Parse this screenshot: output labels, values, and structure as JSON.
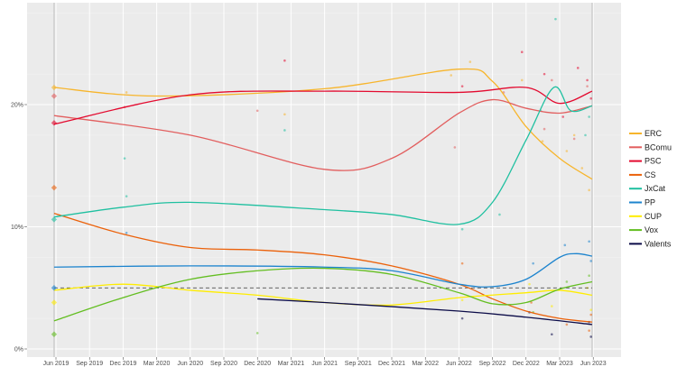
{
  "chart_data": {
    "type": "line",
    "title": "",
    "xlabel": "",
    "ylabel": "",
    "ylim": [
      0,
      0.285
    ],
    "xlim": [
      "2019-03-10",
      "2023-07-20"
    ],
    "y_ticks": [
      {
        "v": 0,
        "label": "0%"
      },
      {
        "v": 10,
        "label": "10%"
      },
      {
        "v": 20,
        "label": "20%"
      }
    ],
    "x_ticks": [
      {
        "d": "2019-06-01",
        "label": "Jun 2019"
      },
      {
        "d": "2019-09-01",
        "label": "Sep 2019"
      },
      {
        "d": "2019-12-01",
        "label": "Dec 2019"
      },
      {
        "d": "2020-03-01",
        "label": "Mar 2020"
      },
      {
        "d": "2020-06-01",
        "label": "Jun 2020"
      },
      {
        "d": "2020-09-01",
        "label": "Sep 2020"
      },
      {
        "d": "2020-12-01",
        "label": "Dec 2020"
      },
      {
        "d": "2021-03-01",
        "label": "Mar 2021"
      },
      {
        "d": "2021-06-01",
        "label": "Jun 2021"
      },
      {
        "d": "2021-09-01",
        "label": "Sep 2021"
      },
      {
        "d": "2021-12-01",
        "label": "Dec 2021"
      },
      {
        "d": "2022-03-01",
        "label": "Mar 2022"
      },
      {
        "d": "2022-06-01",
        "label": "Jun 2022"
      },
      {
        "d": "2022-09-01",
        "label": "Sep 2022"
      },
      {
        "d": "2022-12-01",
        "label": "Dec 2022"
      },
      {
        "d": "2023-03-01",
        "label": "Mar 2023"
      },
      {
        "d": "2023-06-01",
        "label": "Jun 2023"
      }
    ],
    "grid": true,
    "threshold_line": {
      "value": 5,
      "style": "dashed"
    },
    "event_lines": [
      "2019-05-26",
      "2023-05-28"
    ],
    "legend_position": "right",
    "series": [
      {
        "name": "ERC",
        "color": "#F7B52C",
        "election": 21.4,
        "trend": [
          [
            "2019-05-26",
            21.4
          ],
          [
            "2020-03-01",
            20.7
          ],
          [
            "2021-06-01",
            21.3
          ],
          [
            "2022-06-01",
            22.9
          ],
          [
            "2022-09-01",
            21.9
          ],
          [
            "2022-12-01",
            18.2
          ],
          [
            "2023-03-01",
            15.6
          ],
          [
            "2023-05-28",
            13.9
          ]
        ],
        "polls": [
          [
            "2019-12-10",
            21.0
          ],
          [
            "2021-02-14",
            19.2
          ],
          [
            "2022-05-10",
            22.4
          ],
          [
            "2022-07-01",
            23.5
          ],
          [
            "2022-11-20",
            22.0
          ],
          [
            "2023-01-15",
            17.0
          ],
          [
            "2023-03-20",
            16.2
          ],
          [
            "2023-05-01",
            14.8
          ],
          [
            "2023-05-20",
            13.0
          ],
          [
            "2023-04-10",
            17.5
          ]
        ]
      },
      {
        "name": "BComu",
        "color": "#E25E5E",
        "election": 20.7,
        "trend": [
          [
            "2019-05-26",
            19.1
          ],
          [
            "2020-06-01",
            17.5
          ],
          [
            "2021-06-01",
            14.7
          ],
          [
            "2021-12-01",
            15.6
          ],
          [
            "2022-06-01",
            19.3
          ],
          [
            "2022-09-01",
            20.4
          ],
          [
            "2022-12-01",
            19.7
          ],
          [
            "2023-03-01",
            19.3
          ],
          [
            "2023-05-28",
            19.9
          ]
        ],
        "polls": [
          [
            "2019-12-05",
            19.8
          ],
          [
            "2020-12-01",
            19.5
          ],
          [
            "2022-05-20",
            16.5
          ],
          [
            "2022-10-01",
            21.0
          ],
          [
            "2023-01-20",
            18.0
          ],
          [
            "2023-04-10",
            17.2
          ],
          [
            "2023-05-15",
            21.5
          ],
          [
            "2023-02-10",
            22.0
          ]
        ]
      },
      {
        "name": "PSC",
        "color": "#E30A2F",
        "election": 18.5,
        "trend": [
          [
            "2019-05-26",
            18.4
          ],
          [
            "2020-06-01",
            20.8
          ],
          [
            "2021-06-01",
            21.1
          ],
          [
            "2022-06-01",
            21.0
          ],
          [
            "2022-12-01",
            21.4
          ],
          [
            "2023-03-01",
            20.1
          ],
          [
            "2023-05-28",
            21.1
          ]
        ],
        "polls": [
          [
            "2021-02-14",
            23.6
          ],
          [
            "2022-06-10",
            21.5
          ],
          [
            "2022-11-20",
            24.3
          ],
          [
            "2023-01-20",
            22.5
          ],
          [
            "2023-04-20",
            23.0
          ],
          [
            "2023-05-15",
            22.0
          ],
          [
            "2023-05-25",
            20.5
          ],
          [
            "2023-03-10",
            19.0
          ]
        ]
      },
      {
        "name": "CS",
        "color": "#EB610A",
        "election": 13.2,
        "trend": [
          [
            "2019-05-26",
            11.1
          ],
          [
            "2019-12-01",
            9.4
          ],
          [
            "2020-06-01",
            8.3
          ],
          [
            "2020-12-01",
            8.1
          ],
          [
            "2021-06-01",
            7.7
          ],
          [
            "2021-12-01",
            6.8
          ],
          [
            "2022-06-01",
            5.3
          ],
          [
            "2022-09-01",
            4.1
          ],
          [
            "2022-12-01",
            3.1
          ],
          [
            "2023-03-01",
            2.5
          ],
          [
            "2023-05-28",
            2.2
          ]
        ],
        "polls": [
          [
            "2022-06-10",
            7.0
          ],
          [
            "2022-12-15",
            3.8
          ],
          [
            "2023-03-20",
            2.0
          ],
          [
            "2023-05-20",
            1.5
          ],
          [
            "2023-05-25",
            2.8
          ]
        ]
      },
      {
        "name": "JxCat",
        "color": "#1FC0A0",
        "election": 10.6,
        "trend": [
          [
            "2019-05-26",
            10.8
          ],
          [
            "2019-12-01",
            11.6
          ],
          [
            "2020-06-01",
            12.0
          ],
          [
            "2021-06-01",
            11.4
          ],
          [
            "2021-12-01",
            11.0
          ],
          [
            "2022-06-01",
            10.2
          ],
          [
            "2022-09-01",
            12.0
          ],
          [
            "2022-12-01",
            17.1
          ],
          [
            "2023-02-15",
            21.4
          ],
          [
            "2023-04-01",
            19.5
          ],
          [
            "2023-05-28",
            19.9
          ]
        ],
        "polls": [
          [
            "2019-12-10",
            12.5
          ],
          [
            "2019-12-05",
            15.6
          ],
          [
            "2021-02-14",
            17.9
          ],
          [
            "2022-06-10",
            9.8
          ],
          [
            "2022-09-20",
            11.0
          ],
          [
            "2023-01-10",
            19.5
          ],
          [
            "2023-02-20",
            27.0
          ],
          [
            "2023-05-20",
            19.0
          ],
          [
            "2023-05-10",
            17.5
          ]
        ]
      },
      {
        "name": "PP",
        "color": "#1D84CE",
        "election": 5.0,
        "trend": [
          [
            "2019-05-26",
            6.7
          ],
          [
            "2020-06-01",
            6.8
          ],
          [
            "2021-06-01",
            6.7
          ],
          [
            "2021-12-01",
            6.4
          ],
          [
            "2022-06-01",
            5.3
          ],
          [
            "2022-09-01",
            5.1
          ],
          [
            "2022-12-01",
            5.7
          ],
          [
            "2023-03-01",
            7.5
          ],
          [
            "2023-04-15",
            7.8
          ],
          [
            "2023-05-28",
            7.6
          ]
        ],
        "polls": [
          [
            "2019-12-10",
            9.5
          ],
          [
            "2022-12-20",
            7.0
          ],
          [
            "2023-03-15",
            8.5
          ],
          [
            "2023-05-20",
            8.8
          ],
          [
            "2023-05-25",
            7.2
          ]
        ]
      },
      {
        "name": "CUP",
        "color": "#FFED00",
        "election": 3.8,
        "trend": [
          [
            "2019-05-26",
            4.8
          ],
          [
            "2019-12-01",
            5.3
          ],
          [
            "2020-06-01",
            4.8
          ],
          [
            "2020-12-01",
            4.4
          ],
          [
            "2021-06-01",
            3.8
          ],
          [
            "2021-12-01",
            3.6
          ],
          [
            "2022-06-01",
            4.2
          ],
          [
            "2022-12-01",
            4.6
          ],
          [
            "2023-03-01",
            4.8
          ],
          [
            "2023-05-28",
            4.4
          ]
        ],
        "polls": [
          [
            "2022-06-10",
            4.0
          ],
          [
            "2022-12-10",
            5.3
          ],
          [
            "2023-02-10",
            3.5
          ],
          [
            "2023-05-15",
            5.0
          ],
          [
            "2023-05-25",
            3.2
          ]
        ]
      },
      {
        "name": "Vox",
        "color": "#63BE21",
        "election": 1.2,
        "trend": [
          [
            "2019-05-26",
            2.3
          ],
          [
            "2019-12-01",
            4.2
          ],
          [
            "2020-06-01",
            5.7
          ],
          [
            "2020-12-01",
            6.4
          ],
          [
            "2021-06-01",
            6.6
          ],
          [
            "2021-12-01",
            6.1
          ],
          [
            "2022-06-01",
            4.6
          ],
          [
            "2022-09-01",
            3.7
          ],
          [
            "2022-12-01",
            3.8
          ],
          [
            "2023-03-01",
            4.9
          ],
          [
            "2023-05-28",
            5.5
          ]
        ],
        "polls": [
          [
            "2020-12-01",
            1.3
          ],
          [
            "2022-12-20",
            3.0
          ],
          [
            "2023-03-20",
            5.5
          ],
          [
            "2023-05-20",
            6.0
          ]
        ]
      },
      {
        "name": "Valents",
        "color": "#0B0B48",
        "election": null,
        "trend": [
          [
            "2020-12-01",
            4.1
          ],
          [
            "2021-06-01",
            3.8
          ],
          [
            "2022-06-01",
            3.1
          ],
          [
            "2022-12-01",
            2.6
          ],
          [
            "2023-05-28",
            2.0
          ]
        ],
        "polls": [
          [
            "2022-06-10",
            2.5
          ],
          [
            "2022-12-10",
            3.0
          ],
          [
            "2023-02-10",
            1.2
          ],
          [
            "2023-05-20",
            2.2
          ],
          [
            "2023-05-25",
            1.0
          ]
        ]
      }
    ]
  }
}
